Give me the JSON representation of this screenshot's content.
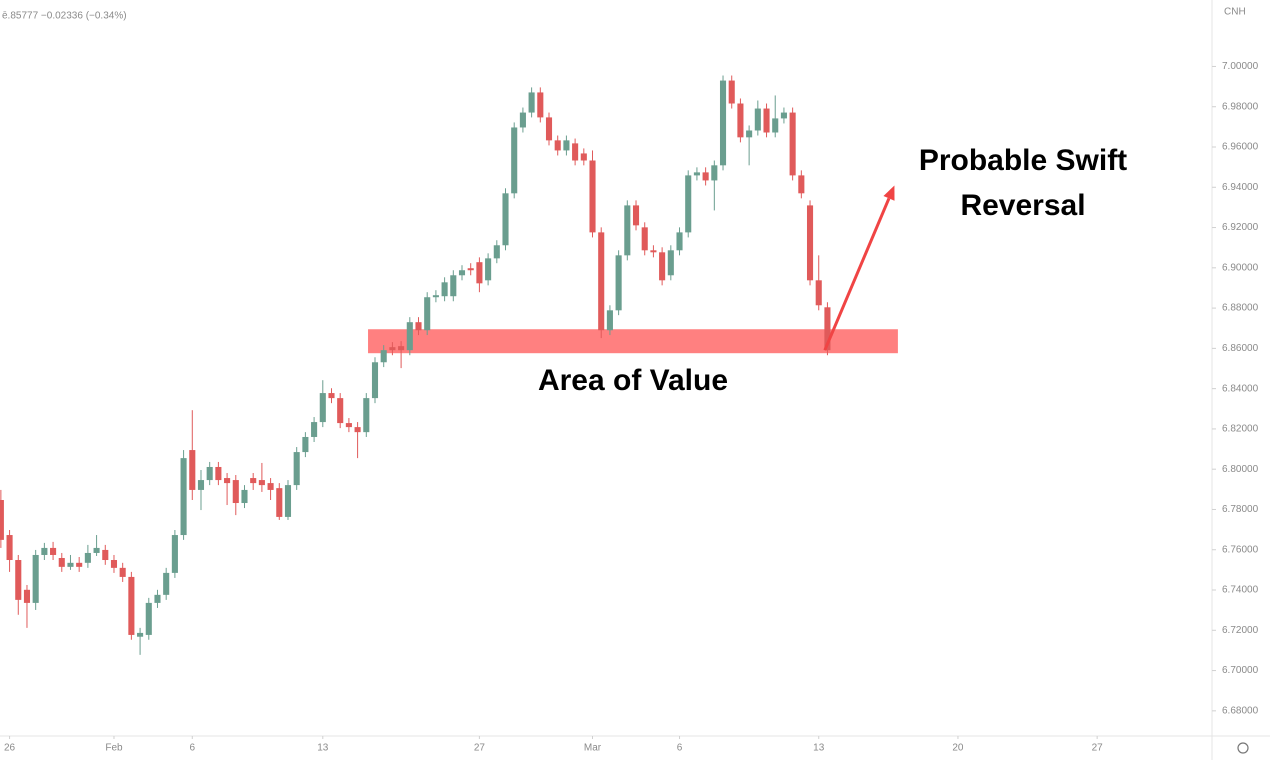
{
  "header": {
    "quote": "ē.85777 −0.02336 (−0.34%)",
    "currency": "CNH"
  },
  "chart_data": {
    "type": "candlestick",
    "up_color": "#6a9e8f",
    "down_color": "#e05a5a",
    "x": [
      0,
      1,
      2,
      3,
      4,
      5,
      6,
      7,
      8,
      9,
      10,
      11,
      12,
      13,
      14,
      15,
      16,
      17,
      18,
      19,
      20,
      21,
      22,
      23,
      24,
      25,
      26,
      27,
      28,
      29,
      30,
      31,
      32,
      33,
      34,
      35,
      36,
      37,
      38,
      39,
      40,
      41,
      42,
      43,
      44,
      45,
      46,
      47,
      48,
      49,
      50,
      51,
      52,
      53,
      54,
      55,
      56,
      57,
      58,
      59,
      60,
      61,
      62,
      63,
      64,
      65,
      66,
      67,
      68,
      69,
      70,
      71,
      72,
      73,
      74,
      75,
      76,
      77,
      78,
      79,
      80,
      81,
      82,
      83,
      84,
      85,
      86,
      87,
      88,
      89,
      90,
      91,
      92,
      93,
      94,
      95
    ],
    "open": [
      6.7847,
      6.7673,
      6.7549,
      6.7401,
      6.7336,
      6.7574,
      6.7609,
      6.7559,
      6.7515,
      6.7535,
      6.7535,
      6.7584,
      6.7599,
      6.7549,
      6.751,
      6.7465,
      6.7168,
      6.7177,
      6.7336,
      6.7376,
      6.7485,
      6.7673,
      6.8095,
      6.7897,
      6.7946,
      6.8011,
      6.7956,
      6.7946,
      6.7832,
      6.7956,
      6.7946,
      6.7931,
      6.7906,
      6.7763,
      6.7921,
      6.8085,
      6.816,
      6.8234,
      6.8378,
      6.8353,
      6.8229,
      6.8209,
      6.8184,
      6.8353,
      6.8531,
      6.8606,
      6.8611,
      6.8591,
      6.873,
      6.869,
      6.8854,
      6.8859,
      6.8859,
      6.8963,
      6.8998,
      6.9028,
      6.8938,
      6.9047,
      6.9112,
      6.937,
      6.9697,
      6.9771,
      6.9871,
      6.9747,
      6.9633,
      6.9583,
      6.9618,
      6.9568,
      6.9533,
      6.9176,
      6.869,
      6.8789,
      6.9062,
      6.931,
      6.9201,
      6.9087,
      6.9077,
      6.8963,
      6.9087,
      6.9176,
      6.9459,
      6.9474,
      6.9434,
      6.9509,
      6.993,
      6.9816,
      6.9648,
      6.9682,
      6.9791,
      6.9672,
      6.9742,
      6.9771,
      6.9459,
      6.931,
      6.8938,
      6.8804
    ],
    "high": [
      6.7897,
      6.7698,
      6.7574,
      6.7425,
      6.7599,
      6.7634,
      6.7639,
      6.7584,
      6.7574,
      6.7564,
      6.7624,
      6.7673,
      6.7624,
      6.7574,
      6.7535,
      6.749,
      6.7212,
      6.7361,
      6.7401,
      6.751,
      6.7698,
      6.8095,
      6.8293,
      6.7996,
      6.8036,
      6.8036,
      6.7981,
      6.7971,
      6.7921,
      6.7981,
      6.8031,
      6.7956,
      6.7931,
      6.7946,
      6.811,
      6.8184,
      6.8259,
      6.8442,
      6.8402,
      6.8378,
      6.8254,
      6.8234,
      6.8378,
      6.8556,
      6.8616,
      6.8631,
      6.8636,
      6.8755,
      6.8755,
      6.8879,
      6.8889,
      6.8953,
      6.8988,
      6.9013,
      6.9023,
      6.9052,
      6.9072,
      6.9137,
      6.9395,
      6.9722,
      6.9796,
      6.9896,
      6.9896,
      6.9771,
      6.9657,
      6.9657,
      6.9642,
      6.9593,
      6.9583,
      6.9201,
      6.8814,
      6.9087,
      6.9335,
      6.9335,
      6.9226,
      6.9112,
      6.9102,
      6.9112,
      6.9201,
      6.9484,
      6.9499,
      6.9499,
      6.9533,
      6.9955,
      6.9955,
      6.9841,
      6.9707,
      6.9831,
      6.9816,
      6.9856,
      6.9796,
      6.9796,
      6.9484,
      6.9335,
      6.9062,
      6.8829
    ],
    "low": [
      6.7609,
      6.749,
      6.7277,
      6.7212,
      6.7301,
      6.7549,
      6.7549,
      6.749,
      6.75,
      6.749,
      6.751,
      6.7569,
      6.7525,
      6.7485,
      6.744,
      6.7153,
      6.7078,
      6.7153,
      6.7311,
      6.7351,
      6.746,
      6.7649,
      6.7847,
      6.7797,
      6.7921,
      6.7921,
      6.7822,
      6.7772,
      6.7807,
      6.7897,
      6.7887,
      6.7847,
      6.7748,
      6.7748,
      6.7897,
      6.806,
      6.8135,
      6.8209,
      6.8328,
      6.8204,
      6.8184,
      6.8055,
      6.816,
      6.8328,
      6.8507,
      6.8566,
      6.8502,
      6.8566,
      6.8666,
      6.8666,
      6.8829,
      6.8834,
      6.8834,
      6.8938,
      6.8963,
      6.8879,
      6.8913,
      6.9023,
      6.9087,
      6.9345,
      6.9672,
      6.9747,
      6.9722,
      6.9608,
      6.9558,
      6.9558,
      6.9509,
      6.9509,
      6.9151,
      6.8651,
      6.8666,
      6.8765,
      6.9037,
      6.9186,
      6.9062,
      6.9052,
      6.8913,
      6.8938,
      6.9062,
      6.9151,
      6.9434,
      6.9409,
      6.9285,
      6.9484,
      6.9791,
      6.9623,
      6.9509,
      6.9657,
      6.9648,
      6.9648,
      6.9717,
      6.9434,
      6.9345,
      6.8913,
      6.8789,
      6.8566
    ],
    "close": [
      6.7649,
      6.7549,
      6.7351,
      6.7336,
      6.7574,
      6.7609,
      6.7574,
      6.7515,
      6.7535,
      6.7515,
      6.7584,
      6.7609,
      6.7549,
      6.751,
      6.7465,
      6.7177,
      6.7187,
      6.7336,
      6.7376,
      6.7485,
      6.7673,
      6.8055,
      6.7897,
      6.7946,
      6.8011,
      6.7946,
      6.7931,
      6.7832,
      6.7897,
      6.7931,
      6.7921,
      6.7897,
      6.7763,
      6.7921,
      6.8085,
      6.816,
      6.8234,
      6.8378,
      6.8353,
      6.8229,
      6.8209,
      6.8184,
      6.8353,
      6.8531,
      6.8591,
      6.8591,
      6.8591,
      6.873,
      6.869,
      6.8854,
      6.8864,
      6.8928,
      6.8963,
      6.8988,
      6.8988,
      6.8923,
      6.9047,
      6.9112,
      6.937,
      6.9697,
      6.9771,
      6.9871,
      6.9747,
      6.9633,
      6.9583,
      6.9633,
      6.9533,
      6.9533,
      6.9176,
      6.869,
      6.8789,
      6.9062,
      6.931,
      6.9211,
      6.9087,
      6.9077,
      6.8938,
      6.9087,
      6.9176,
      6.9459,
      6.9474,
      6.9434,
      6.9509,
      6.993,
      6.9816,
      6.9648,
      6.9682,
      6.9791,
      6.9672,
      6.9742,
      6.9771,
      6.9459,
      6.937,
      6.8938,
      6.8814,
      6.8591
    ],
    "xlim": [
      -0.1,
      139.2
    ],
    "xticks": [
      {
        "value": 1,
        "label": "26"
      },
      {
        "value": 13,
        "label": "Feb"
      },
      {
        "value": 22,
        "label": "6"
      },
      {
        "value": 37,
        "label": "13"
      },
      {
        "value": 55,
        "label": "27"
      },
      {
        "value": 68,
        "label": "Mar"
      },
      {
        "value": 78,
        "label": "6"
      },
      {
        "value": 94,
        "label": "13"
      },
      {
        "value": 110,
        "label": "20"
      },
      {
        "value": 126,
        "label": "27"
      }
    ],
    "ylim": [
      6.668,
      7.033
    ],
    "yticks": [
      {
        "value": 7.0,
        "label": "7.00000"
      },
      {
        "value": 6.98,
        "label": "6.98000"
      },
      {
        "value": 6.96,
        "label": "6.96000"
      },
      {
        "value": 6.94,
        "label": "6.94000"
      },
      {
        "value": 6.92,
        "label": "6.92000"
      },
      {
        "value": 6.9,
        "label": "6.90000"
      },
      {
        "value": 6.88,
        "label": "6.88000"
      },
      {
        "value": 6.86,
        "label": "6.86000"
      },
      {
        "value": 6.84,
        "label": "6.84000"
      },
      {
        "value": 6.82,
        "label": "6.82000"
      },
      {
        "value": 6.8,
        "label": "6.80000"
      },
      {
        "value": 6.78,
        "label": "6.78000"
      },
      {
        "value": 6.76,
        "label": "6.76000"
      },
      {
        "value": 6.74,
        "label": "6.74000"
      },
      {
        "value": 6.72,
        "label": "6.72000"
      },
      {
        "value": 6.7,
        "label": "6.70000"
      },
      {
        "value": 6.68,
        "label": "6.68000"
      }
    ],
    "zone": {
      "label": "Area of Value",
      "x": [
        42.2,
        103.1
      ],
      "y": [
        6.8576,
        6.8695
      ],
      "color": "#ff8080"
    },
    "arrow": {
      "label": "Probable Swift Reversal",
      "x": [
        94.7,
        102.7
      ],
      "y": [
        6.8591,
        6.9409
      ],
      "color": "#f04444"
    }
  }
}
